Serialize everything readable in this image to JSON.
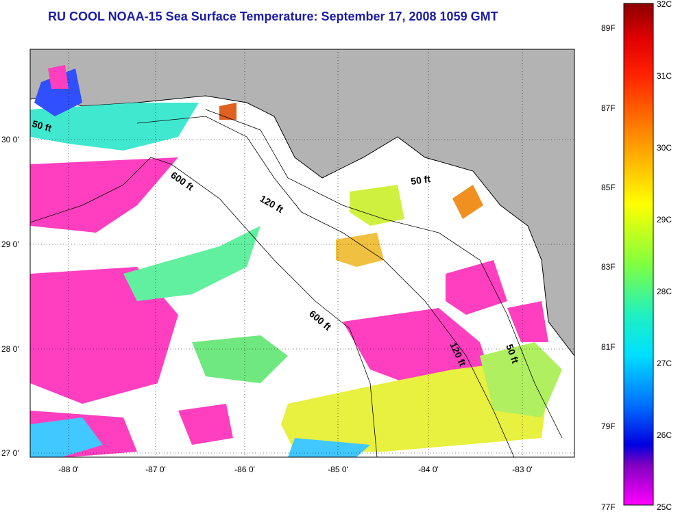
{
  "title": "RU COOL  NOAA-15  Sea Surface Temperature:  September 17, 2008 1059 GMT",
  "map": {
    "lon_labels": [
      "-88 0'",
      "-87 0'",
      "-86 0'",
      "-85 0'",
      "-84 0'",
      "-83 0'"
    ],
    "lat_labels": [
      "30 0'",
      "29 0'",
      "28 0'",
      "27 0'"
    ],
    "contour_labels": [
      "50 ft",
      "600 ft",
      "120 ft",
      "50 ft",
      "600 ft",
      "120 ft",
      "50 ft"
    ],
    "colors": {
      "land": "#b3b3b3",
      "cloud": "#ffffff",
      "sst_cold": "#ff3fbf",
      "sst_mid": "#4cf0c8",
      "sst_warm": "#f0f040"
    }
  },
  "colorbar": {
    "celsius_labels": [
      "32C",
      "31C",
      "30C",
      "29C",
      "28C",
      "27C",
      "26C",
      "25C"
    ],
    "fahrenheit_labels": [
      "89F",
      "87F",
      "85F",
      "83F",
      "81F",
      "79F",
      "77F"
    ]
  }
}
